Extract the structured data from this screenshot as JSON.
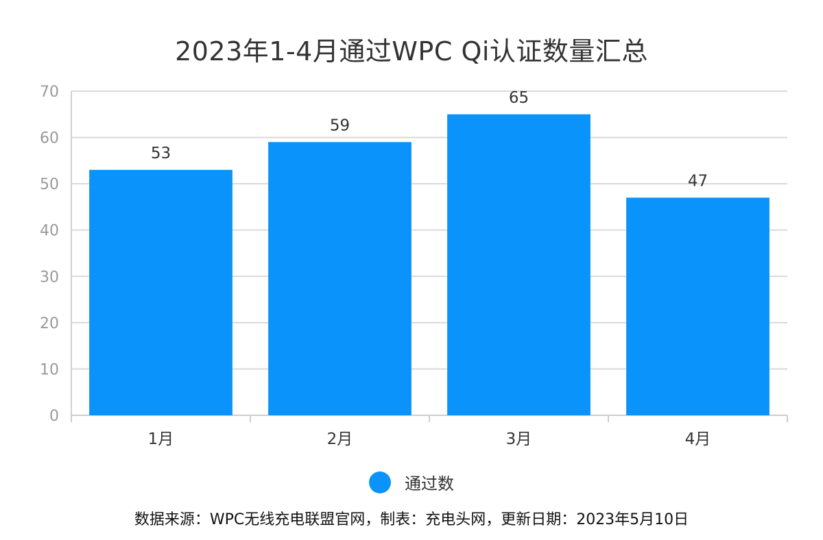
{
  "chart_data": {
    "type": "bar",
    "title": "2023年1-4月通过WPC Qi认证数量汇总",
    "categories": [
      "1月",
      "2月",
      "3月",
      "4月"
    ],
    "series": [
      {
        "name": "通过数",
        "values": [
          53,
          59,
          65,
          47
        ],
        "color": "#0a93fa"
      }
    ],
    "xlabel": "",
    "ylabel": "",
    "ylim": [
      0,
      70
    ],
    "yticks": [
      0,
      10,
      20,
      30,
      40,
      50,
      60,
      70
    ],
    "grid": true,
    "data_labels": true,
    "legend_position": "bottom-center"
  },
  "source_note": "数据来源：WPC无线充电联盟官网，制表：充电头网，更新日期：2023年5月10日"
}
